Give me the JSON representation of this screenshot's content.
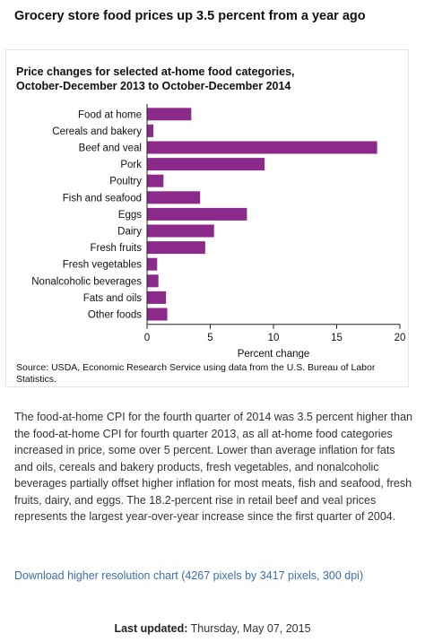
{
  "page": {
    "title": "Grocery store food prices up 3.5 percent from a year ago"
  },
  "chart_data": {
    "type": "bar",
    "orientation": "horizontal",
    "title": "Price changes for selected at-home food categories,",
    "subtitle": "October-December 2013 to October-December 2014",
    "categories": [
      "Food at home",
      "Cereals and bakery",
      "Beef and veal",
      "Pork",
      "Poultry",
      "Fish and seafood",
      "Eggs",
      "Dairy",
      "Fresh fruits",
      "Fresh vegetables",
      "Nonalcoholic beverages",
      "Fats and oils",
      "Other foods"
    ],
    "values": [
      3.5,
      0.5,
      18.2,
      9.3,
      1.3,
      4.2,
      7.9,
      5.3,
      4.6,
      0.8,
      0.9,
      1.5,
      1.6
    ],
    "xlabel": "Percent change",
    "ylabel": "",
    "xlim": [
      0,
      20
    ],
    "xticks": [
      "0",
      "5",
      "10",
      "15",
      "20"
    ],
    "grid": false,
    "bar_color": "#8b2a8b",
    "axis_color": "#222222"
  },
  "source": "Source: USDA, Economic Research Service using data from the U.S. Bureau of Labor Statistics.",
  "description": "The food-at-home CPI for the fourth quarter of 2014 was 3.5 percent higher than the food-at-home CPI for fourth quarter 2013, as all at-home food categories increased in price, some over 5 percent. Lower than average inflation for fats and oils, cereals and bakery products, fresh vegetables, and nonalcoholic beverages partially offset higher inflation for most meats, fish and seafood, fresh fruits, dairy, and eggs. The 18.2-percent rise in retail beef and veal prices represents the largest year-over-year increase since the first quarter of 2004.",
  "download_link": "Download higher resolution chart (4267 pixels by 3417 pixels, 300 dpi)",
  "footer": {
    "label": "Last updated:",
    "date": "Thursday, May 07, 2015"
  },
  "colors": {
    "link": "#3b6fb0",
    "text": "#333333"
  }
}
